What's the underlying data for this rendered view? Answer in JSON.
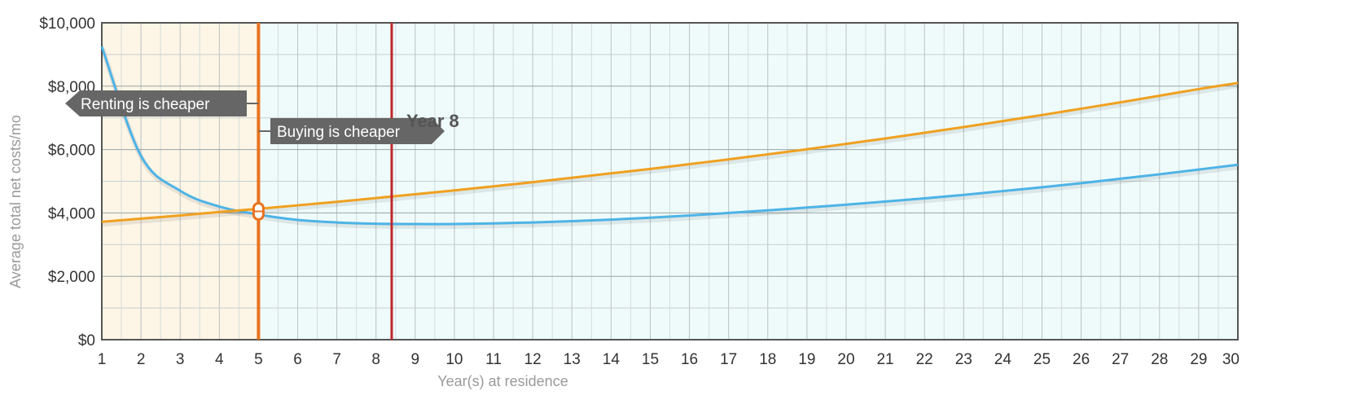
{
  "chart_data": {
    "type": "line",
    "xlabel": "Year(s) at residence",
    "ylabel": "Average total net costs/mo",
    "x": [
      1,
      2,
      3,
      4,
      5,
      6,
      7,
      8,
      9,
      10,
      11,
      12,
      13,
      14,
      15,
      16,
      17,
      18,
      19,
      20,
      21,
      22,
      23,
      24,
      25,
      26,
      27,
      28,
      29,
      30
    ],
    "xlim": [
      1,
      30
    ],
    "ylim": [
      0,
      10000
    ],
    "y_ticks": [
      "$0",
      "$2,000",
      "$4,000",
      "$6,000",
      "$8,000",
      "$10,000"
    ],
    "y_tick_values": [
      0,
      2000,
      4000,
      6000,
      8000,
      10000
    ],
    "x_ticks": [
      "1",
      "2",
      "3",
      "4",
      "5",
      "6",
      "7",
      "8",
      "9",
      "10",
      "11",
      "12",
      "13",
      "14",
      "15",
      "16",
      "17",
      "18",
      "19",
      "20",
      "21",
      "22",
      "23",
      "24",
      "25",
      "26",
      "27",
      "28",
      "29",
      "30"
    ],
    "grid": true,
    "series": [
      {
        "color": "#4db3e6",
        "values": [
          9250,
          5800,
          4700,
          4200,
          3950,
          3780,
          3700,
          3660,
          3650,
          3650,
          3670,
          3700,
          3740,
          3790,
          3850,
          3920,
          4000,
          4080,
          4170,
          4260,
          4360,
          4460,
          4570,
          4690,
          4810,
          4940,
          5080,
          5220,
          5370,
          5520
        ]
      },
      {
        "color": "#f0a020",
        "values": [
          3720,
          3820,
          3920,
          4030,
          4130,
          4240,
          4350,
          4470,
          4590,
          4710,
          4840,
          4970,
          5110,
          5250,
          5390,
          5540,
          5690,
          5850,
          6010,
          6180,
          6350,
          6530,
          6710,
          6900,
          7090,
          7290,
          7490,
          7700,
          7910,
          8100
        ]
      }
    ],
    "regions": [
      {
        "from": 1,
        "to": 5,
        "color": "#fdf5e6"
      },
      {
        "from": 5,
        "to": 30,
        "color": "#effbfb"
      }
    ],
    "breakeven": {
      "x": 5,
      "y": 4050,
      "color": "#e8731e"
    },
    "marker": {
      "x": 8.4,
      "label": "Year 8",
      "color": "#c0282d"
    },
    "annotations": {
      "renting": "Renting is cheaper",
      "buying": "Buying is cheaper"
    }
  }
}
